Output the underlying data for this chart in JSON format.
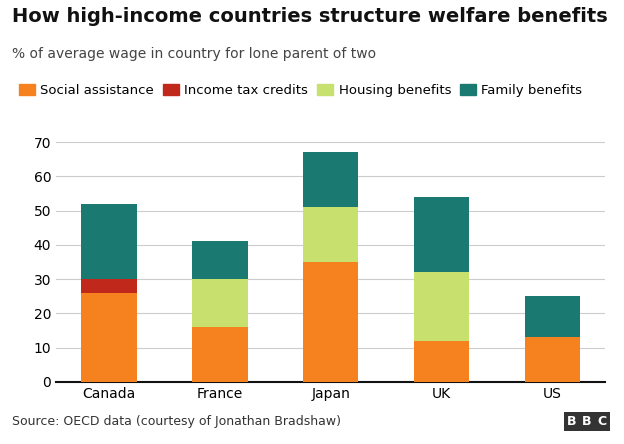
{
  "title": "How high-income countries structure welfare benefits",
  "subtitle": "% of average wage in country for lone parent of two",
  "source": "Source: OECD data (courtesy of Jonathan Bradshaw)",
  "categories": [
    "Canada",
    "France",
    "Japan",
    "UK",
    "US"
  ],
  "series": {
    "Social assistance": [
      26,
      16,
      35,
      12,
      13
    ],
    "Income tax credits": [
      4,
      0,
      0,
      0,
      0
    ],
    "Housing benefits": [
      0,
      14,
      16,
      20,
      0
    ],
    "Family benefits": [
      22,
      11,
      16,
      22,
      12
    ]
  },
  "colors": {
    "Social assistance": "#f5821e",
    "Income tax credits": "#c0281c",
    "Housing benefits": "#c8e06e",
    "Family benefits": "#1a7a72"
  },
  "ylim": [
    0,
    70
  ],
  "yticks": [
    0,
    10,
    20,
    30,
    40,
    50,
    60,
    70
  ],
  "background_color": "#ffffff",
  "footer_background": "#e0e0e0",
  "title_fontsize": 14,
  "subtitle_fontsize": 10,
  "legend_fontsize": 9.5,
  "tick_fontsize": 10,
  "source_fontsize": 9,
  "bbc_text": "BBC"
}
